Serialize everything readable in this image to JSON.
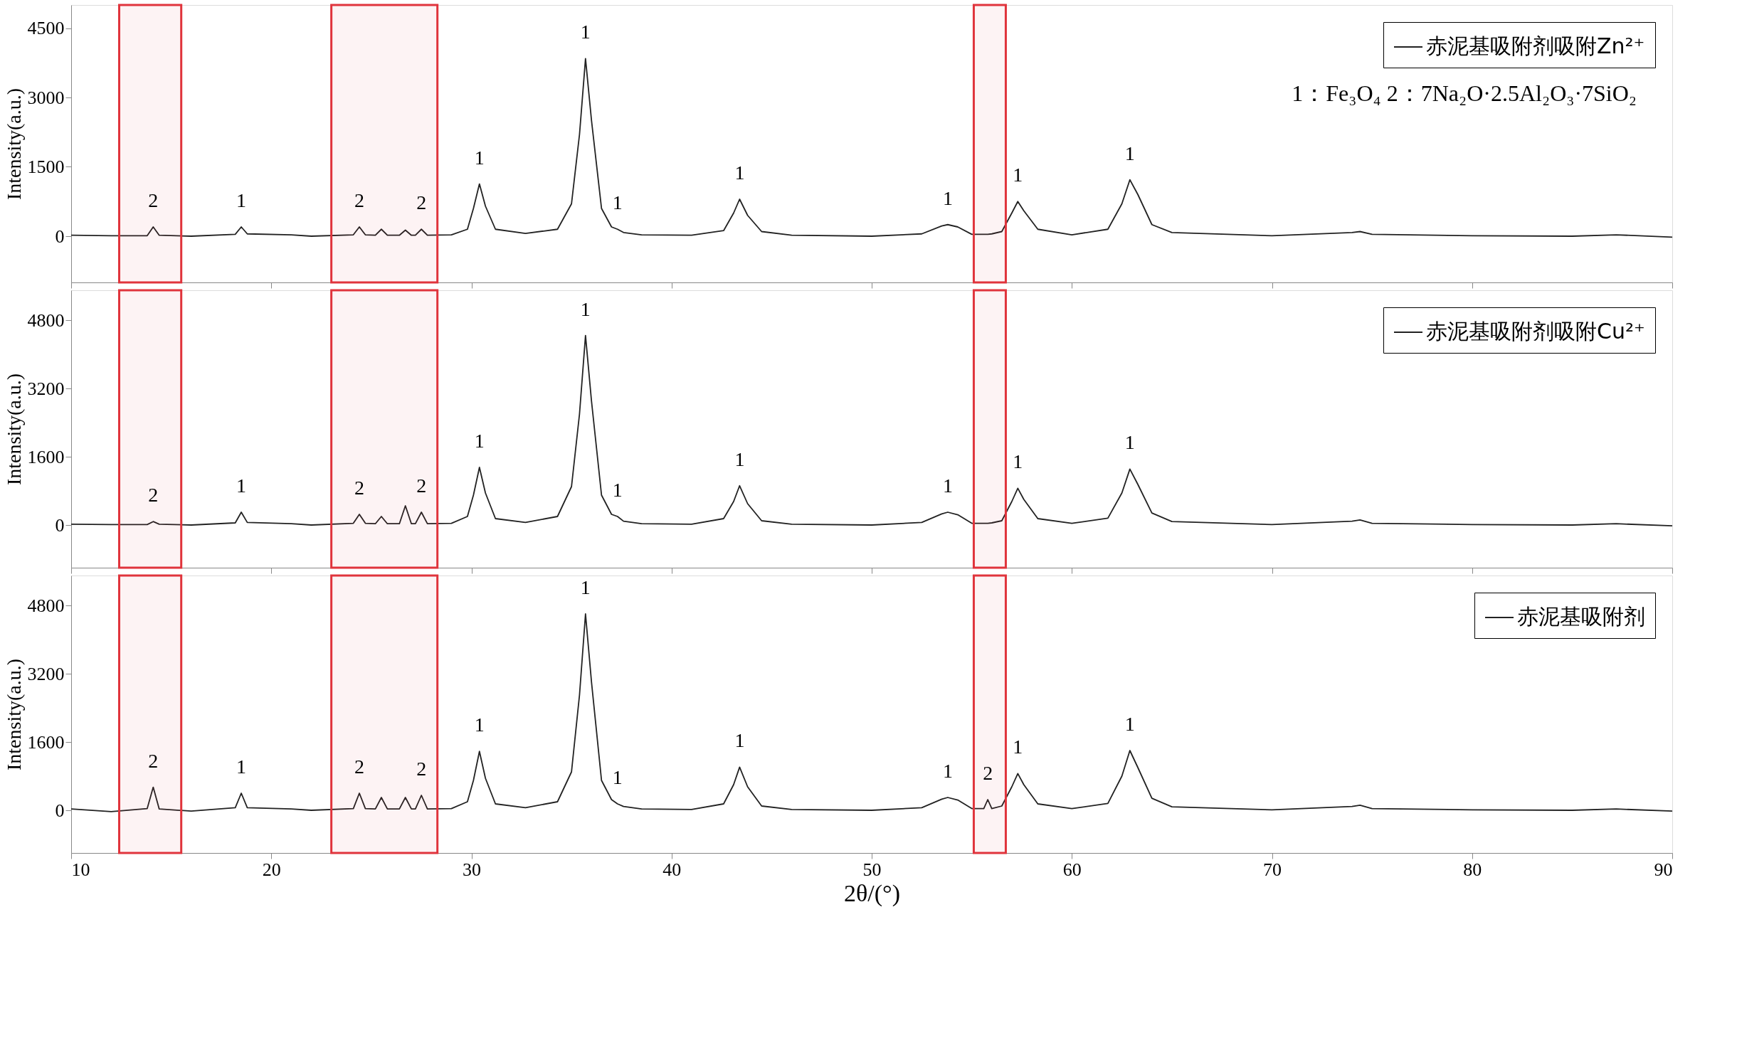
{
  "chart_data": [
    {
      "type": "line",
      "ylabel": "Intensity(a.u.)",
      "legend": "top right",
      "tick_labels": "y",
      "line_style": "solid",
      "marker": "none",
      "xlim": [
        10,
        90
      ],
      "xticks": [
        10,
        20,
        30,
        40,
        50,
        60,
        70,
        80,
        90
      ],
      "ylim": [
        -1000,
        5000
      ],
      "yticks": [
        0,
        1500,
        3000,
        4500
      ],
      "x": [
        10,
        12,
        13.8,
        14.1,
        14.4,
        16,
        18.2,
        18.5,
        18.8,
        21,
        22,
        24.1,
        24.4,
        24.7,
        25.2,
        25.5,
        25.8,
        26.4,
        26.7,
        27.0,
        27.2,
        27.5,
        27.8,
        29.0,
        29.8,
        30.1,
        30.4,
        30.7,
        31.2,
        32.7,
        34.3,
        35.0,
        35.4,
        35.7,
        36.0,
        36.5,
        37.0,
        37.3,
        37.6,
        38.5,
        41,
        42.6,
        43.1,
        43.4,
        43.8,
        44.5,
        46,
        50,
        52.5,
        53.5,
        53.8,
        54.3,
        55,
        55.6,
        55.8,
        56.0,
        56.5,
        57.0,
        57.3,
        57.6,
        58.3,
        60,
        61.8,
        62.5,
        62.9,
        63.3,
        64.0,
        65,
        70,
        74.0,
        74.4,
        75,
        80,
        85,
        87.2,
        90
      ],
      "series": [
        {
          "name": "赤泥基吸附剂吸附Zn²⁺",
          "color": "#222222",
          "values": [
            20,
            10,
            10,
            200,
            20,
            0,
            40,
            200,
            50,
            30,
            0,
            30,
            200,
            30,
            20,
            150,
            20,
            20,
            130,
            20,
            20,
            150,
            20,
            30,
            150,
            600,
            1130,
            650,
            150,
            60,
            150,
            700,
            2200,
            3840,
            2500,
            600,
            200,
            150,
            80,
            30,
            20,
            120,
            500,
            800,
            450,
            100,
            20,
            0,
            50,
            220,
            250,
            200,
            40,
            40,
            40,
            50,
            100,
            500,
            750,
            550,
            150,
            30,
            150,
            700,
            1220,
            900,
            250,
            80,
            10,
            80,
            100,
            40,
            10,
            0,
            30,
            -20
          ]
        }
      ],
      "bands": [
        {
          "axis": "x",
          "from": 12.4,
          "to": 15.5,
          "color": "#e0343c"
        },
        {
          "axis": "x",
          "from": 23.0,
          "to": 28.3,
          "color": "#e0343c"
        },
        {
          "axis": "x",
          "from": 55.1,
          "to": 56.7,
          "color": "#e0343c"
        }
      ],
      "annotations": [
        "1：Fe₃O₄    2：7Na₂O·2.5Al₂O₃·7SiO₂",
        {
          "text": "2",
          "x": 14.1,
          "y": 200
        },
        {
          "text": "1",
          "x": 18.5,
          "y": 200
        },
        {
          "text": "2",
          "x": 24.4,
          "y": 200
        },
        {
          "text": "2",
          "x": 27.5,
          "y": 150
        },
        {
          "text": "1",
          "x": 30.4,
          "y": 1130
        },
        {
          "text": "1",
          "x": 35.7,
          "y": 3840
        },
        {
          "text": "1",
          "x": 37.3,
          "y": 150
        },
        {
          "text": "1",
          "x": 43.4,
          "y": 800
        },
        {
          "text": "1",
          "x": 53.8,
          "y": 250
        },
        {
          "text": "1",
          "x": 57.3,
          "y": 750
        },
        {
          "text": "1",
          "x": 62.9,
          "y": 1220
        }
      ]
    },
    {
      "type": "line",
      "ylabel": "Intensity(a.u.)",
      "legend": "top right",
      "tick_labels": "y",
      "line_style": "solid",
      "marker": "none",
      "xlim": [
        10,
        90
      ],
      "xticks": [
        10,
        20,
        30,
        40,
        50,
        60,
        70,
        80,
        90
      ],
      "ylim": [
        -1000,
        5500
      ],
      "yticks": [
        0,
        1600,
        3200,
        4800
      ],
      "x": [
        10,
        12,
        13.8,
        14.1,
        14.4,
        16,
        18.2,
        18.5,
        18.8,
        21,
        22,
        24.1,
        24.4,
        24.7,
        25.2,
        25.5,
        25.8,
        26.4,
        26.7,
        27.0,
        27.2,
        27.5,
        27.8,
        29.0,
        29.8,
        30.1,
        30.4,
        30.7,
        31.2,
        32.7,
        34.3,
        35.0,
        35.4,
        35.7,
        36.0,
        36.5,
        37.0,
        37.3,
        37.6,
        38.5,
        41,
        42.6,
        43.1,
        43.4,
        43.8,
        44.5,
        46,
        50,
        52.5,
        53.5,
        53.8,
        54.3,
        55,
        55.6,
        55.8,
        56.0,
        56.5,
        57.0,
        57.3,
        57.6,
        58.3,
        60,
        61.8,
        62.5,
        62.9,
        63.3,
        64.0,
        65,
        70,
        74.0,
        74.4,
        75,
        80,
        85,
        87.2,
        90
      ],
      "series": [
        {
          "name": "赤泥基吸附剂吸附Cu²⁺",
          "color": "#222222",
          "values": [
            20,
            10,
            10,
            80,
            20,
            0,
            50,
            300,
            60,
            30,
            0,
            40,
            250,
            40,
            30,
            200,
            30,
            30,
            450,
            30,
            30,
            300,
            30,
            40,
            200,
            700,
            1350,
            750,
            150,
            60,
            200,
            900,
            2600,
            4440,
            2900,
            700,
            250,
            200,
            90,
            30,
            20,
            150,
            550,
            920,
            500,
            100,
            20,
            0,
            60,
            260,
            300,
            240,
            40,
            40,
            40,
            50,
            100,
            550,
            860,
            600,
            150,
            40,
            160,
            750,
            1310,
            950,
            280,
            80,
            10,
            90,
            120,
            40,
            10,
            0,
            30,
            -20
          ]
        }
      ],
      "bands": [
        {
          "axis": "x",
          "from": 12.4,
          "to": 15.5,
          "color": "#e0343c"
        },
        {
          "axis": "x",
          "from": 23.0,
          "to": 28.3,
          "color": "#e0343c"
        },
        {
          "axis": "x",
          "from": 55.1,
          "to": 56.7,
          "color": "#e0343c"
        }
      ],
      "annotations": [
        {
          "text": "2",
          "x": 14.1,
          "y": 80
        },
        {
          "text": "1",
          "x": 18.5,
          "y": 300
        },
        {
          "text": "2",
          "x": 24.4,
          "y": 250
        },
        {
          "text": "2",
          "x": 27.5,
          "y": 300
        },
        {
          "text": "1",
          "x": 30.4,
          "y": 1350
        },
        {
          "text": "1",
          "x": 35.7,
          "y": 4440
        },
        {
          "text": "1",
          "x": 37.3,
          "y": 200
        },
        {
          "text": "1",
          "x": 43.4,
          "y": 920
        },
        {
          "text": "1",
          "x": 53.8,
          "y": 300
        },
        {
          "text": "1",
          "x": 57.3,
          "y": 860
        },
        {
          "text": "1",
          "x": 62.9,
          "y": 1310
        }
      ]
    },
    {
      "type": "line",
      "xlabel": "2θ/(°)",
      "ylabel": "Intensity(a.u.)",
      "legend": "top right",
      "line_style": "solid",
      "marker": "none",
      "xlim": [
        10,
        90
      ],
      "xticks": [
        10,
        20,
        30,
        40,
        50,
        60,
        70,
        80,
        90
      ],
      "ylim": [
        -1000,
        5500
      ],
      "yticks": [
        0,
        1600,
        3200,
        4800
      ],
      "x": [
        10,
        12,
        13.8,
        14.1,
        14.4,
        16,
        18.2,
        18.5,
        18.8,
        21,
        22,
        24.1,
        24.4,
        24.7,
        25.2,
        25.5,
        25.8,
        26.4,
        26.7,
        27.0,
        27.2,
        27.5,
        27.8,
        29.0,
        29.8,
        30.1,
        30.4,
        30.7,
        31.2,
        32.7,
        34.3,
        35.0,
        35.4,
        35.7,
        36.0,
        36.5,
        37.0,
        37.3,
        37.6,
        38.5,
        41,
        42.6,
        43.1,
        43.4,
        43.8,
        44.5,
        46,
        50,
        52.5,
        53.5,
        53.8,
        54.3,
        55,
        55.6,
        55.8,
        56.0,
        56.5,
        57.0,
        57.3,
        57.6,
        58.3,
        60,
        61.8,
        62.5,
        62.9,
        63.3,
        64.0,
        65,
        70,
        74.0,
        74.4,
        75,
        80,
        85,
        87.2,
        90
      ],
      "series": [
        {
          "name": "赤泥基吸附剂",
          "color": "#222222",
          "values": [
            30,
            -30,
            40,
            540,
            30,
            -20,
            60,
            400,
            60,
            30,
            0,
            40,
            400,
            40,
            30,
            300,
            30,
            30,
            300,
            30,
            30,
            350,
            30,
            40,
            200,
            700,
            1380,
            750,
            150,
            60,
            200,
            900,
            2700,
            4600,
            3000,
            700,
            250,
            150,
            90,
            30,
            20,
            150,
            600,
            1010,
            550,
            100,
            20,
            0,
            60,
            260,
            300,
            240,
            40,
            40,
            250,
            40,
            100,
            550,
            860,
            600,
            150,
            40,
            160,
            800,
            1400,
            1000,
            280,
            80,
            10,
            90,
            120,
            40,
            10,
            0,
            30,
            -20
          ]
        }
      ],
      "bands": [
        {
          "axis": "x",
          "from": 12.4,
          "to": 15.5,
          "color": "#e0343c"
        },
        {
          "axis": "x",
          "from": 23.0,
          "to": 28.3,
          "color": "#e0343c"
        },
        {
          "axis": "x",
          "from": 55.1,
          "to": 56.7,
          "color": "#e0343c"
        }
      ],
      "annotations": [
        {
          "text": "2",
          "x": 14.1,
          "y": 540
        },
        {
          "text": "1",
          "x": 18.5,
          "y": 400
        },
        {
          "text": "2",
          "x": 24.4,
          "y": 400
        },
        {
          "text": "2",
          "x": 27.5,
          "y": 350
        },
        {
          "text": "1",
          "x": 30.4,
          "y": 1380
        },
        {
          "text": "1",
          "x": 35.7,
          "y": 4600
        },
        {
          "text": "1",
          "x": 37.3,
          "y": 150
        },
        {
          "text": "1",
          "x": 43.4,
          "y": 1010
        },
        {
          "text": "1",
          "x": 53.8,
          "y": 300
        },
        {
          "text": "2",
          "x": 55.8,
          "y": 250
        },
        {
          "text": "1",
          "x": 57.3,
          "y": 860
        },
        {
          "text": "1",
          "x": 62.9,
          "y": 1400
        }
      ]
    }
  ]
}
